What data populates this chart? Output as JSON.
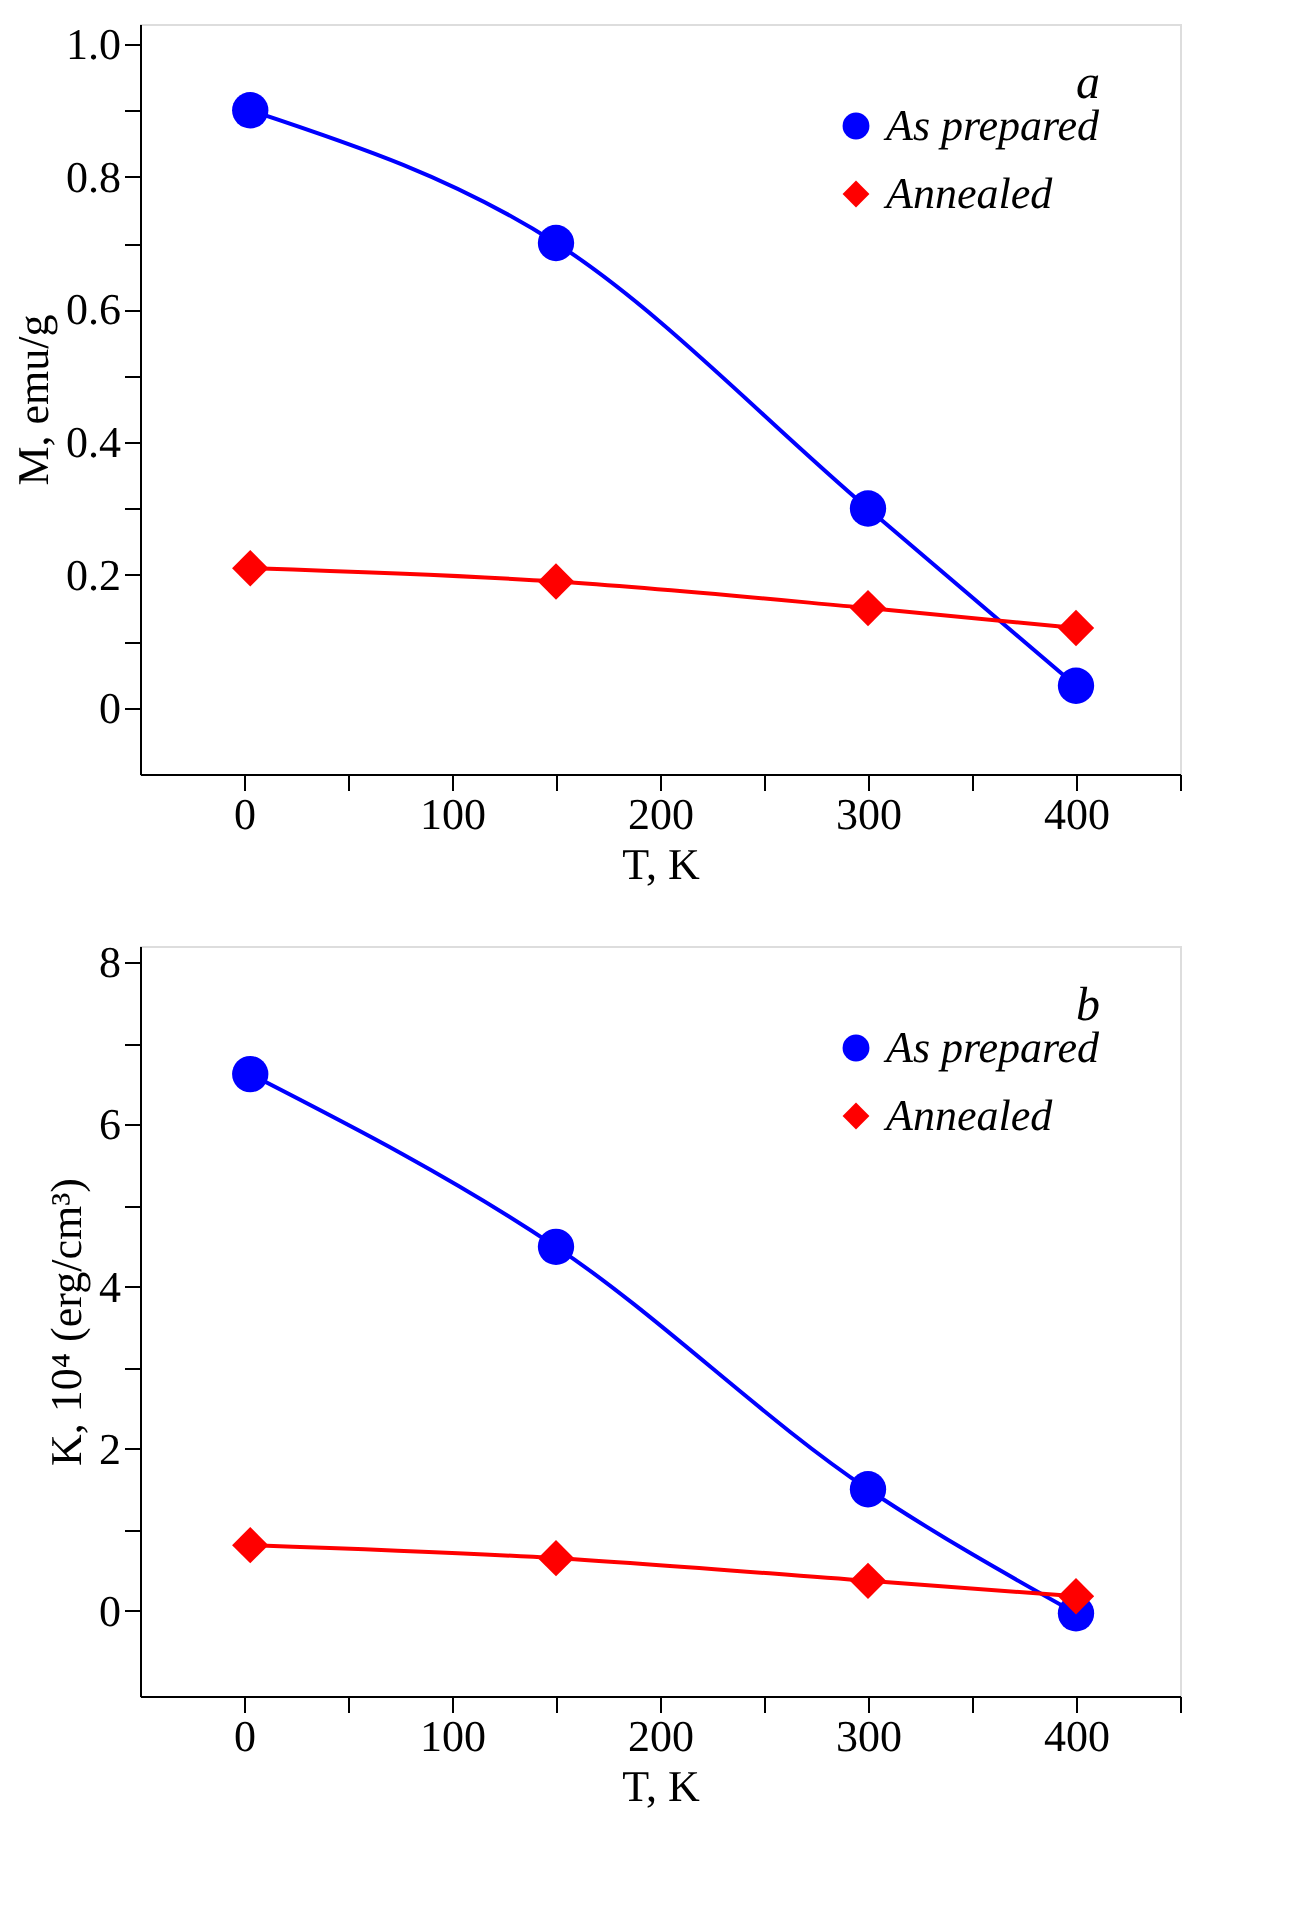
{
  "chart_data": [
    {
      "type": "line",
      "xlabel": "T, K",
      "ylabel": "M, emu/g",
      "annotations": [
        "a"
      ],
      "x": [
        3,
        150,
        300,
        400
      ],
      "series": [
        {
          "name": "As prepared",
          "color": "#0000ff",
          "marker": "circle",
          "values": [
            0.9,
            0.7,
            0.3,
            0.033
          ]
        },
        {
          "name": "Annealed",
          "color": "#ff0000",
          "marker": "diamond",
          "values": [
            0.21,
            0.19,
            0.15,
            0.12
          ]
        }
      ],
      "xlim": [
        -50,
        450
      ],
      "ylim": [
        -0.1,
        1.03
      ],
      "xticks": [
        0,
        {
          "value": 50,
          "label": null
        },
        100,
        {
          "value": 150,
          "label": null
        },
        200,
        {
          "value": 250,
          "label": null
        },
        300,
        {
          "value": 350,
          "label": null
        },
        400,
        {
          "value": 450,
          "label": null
        }
      ],
      "yticks": [
        {
          "value": 0,
          "label": "0"
        },
        {
          "value": 0.1,
          "label": null
        },
        0.2,
        {
          "value": 0.3,
          "label": null
        },
        0.4,
        {
          "value": 0.5,
          "label": null
        },
        0.6,
        {
          "value": 0.7,
          "label": null
        },
        0.8,
        {
          "value": 0.9,
          "label": null
        },
        {
          "value": 1.0,
          "label": "1.0"
        }
      ],
      "grid": false,
      "legend": "top right",
      "line_style": "solid"
    },
    {
      "type": "line",
      "xlabel": "T, K",
      "ylabel": "K, 10⁴ (erg/cm³)",
      "annotations": [
        "b"
      ],
      "x": [
        3,
        150,
        300,
        400
      ],
      "series": [
        {
          "name": "As prepared",
          "color": "#0000ff",
          "marker": "circle",
          "values": [
            6.62,
            4.49,
            1.5,
            -0.03
          ]
        },
        {
          "name": "Annealed",
          "color": "#ff0000",
          "marker": "diamond",
          "values": [
            0.81,
            0.65,
            0.37,
            0.18
          ]
        }
      ],
      "xlim": [
        -50,
        450
      ],
      "ylim": [
        -1.05,
        8.2
      ],
      "xticks": [
        0,
        {
          "value": 50,
          "label": null
        },
        100,
        {
          "value": 150,
          "label": null
        },
        200,
        {
          "value": 250,
          "label": null
        },
        300,
        {
          "value": 350,
          "label": null
        },
        400,
        {
          "value": 450,
          "label": null
        }
      ],
      "yticks": [
        0,
        {
          "value": 1,
          "label": null
        },
        2,
        {
          "value": 3,
          "label": null
        },
        4,
        {
          "value": 5,
          "label": null
        },
        6,
        {
          "value": 7,
          "label": null
        },
        8
      ],
      "grid": false,
      "legend": "top right",
      "line_style": "solid"
    }
  ]
}
